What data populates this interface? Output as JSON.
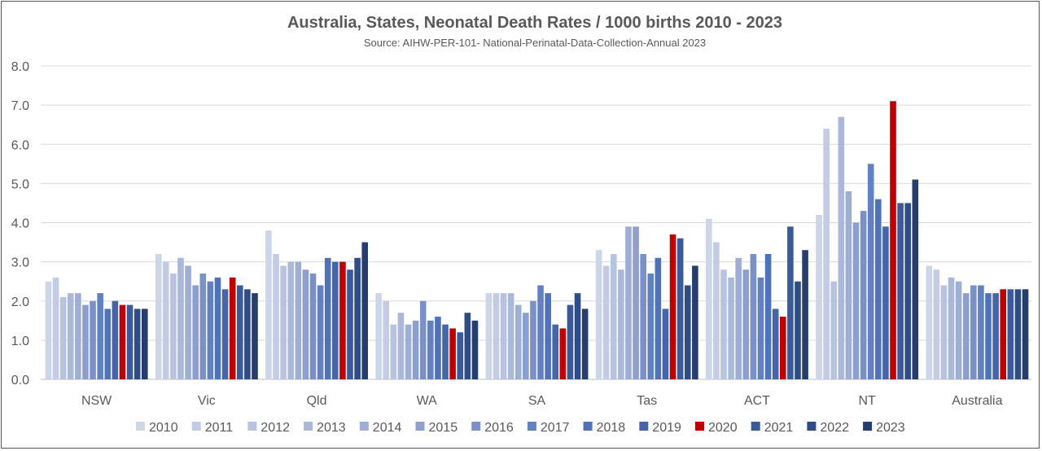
{
  "chart_data": {
    "type": "bar",
    "title": "Australia, States, Neonatal Death Rates / 1000 births 2010 - 2023",
    "subtitle": "Source: AIHW-PER-101- National-Perinatal-Data-Collection-Annual 2023",
    "xlabel": "",
    "ylabel": "",
    "ylim": [
      0,
      8
    ],
    "yticks": [
      "0.0",
      "1.0",
      "2.0",
      "3.0",
      "4.0",
      "5.0",
      "6.0",
      "7.0",
      "8.0"
    ],
    "grid": true,
    "legend_position": "bottom",
    "categories": [
      "NSW",
      "Vic",
      "Qld",
      "WA",
      "SA",
      "Tas",
      "ACT",
      "NT",
      "Australia"
    ],
    "series": [
      {
        "name": "2010",
        "color": "#cdd5e8",
        "values": [
          2.5,
          3.2,
          3.8,
          2.2,
          2.2,
          3.3,
          4.1,
          4.2,
          2.9
        ]
      },
      {
        "name": "2011",
        "color": "#c3cce4",
        "values": [
          2.6,
          3.0,
          3.2,
          2.0,
          2.2,
          2.9,
          3.5,
          6.4,
          2.8
        ]
      },
      {
        "name": "2012",
        "color": "#b7c3df",
        "values": [
          2.1,
          2.7,
          2.9,
          1.4,
          2.2,
          3.2,
          2.8,
          2.5,
          2.4
        ]
      },
      {
        "name": "2013",
        "color": "#aab8da",
        "values": [
          2.2,
          3.1,
          3.0,
          1.7,
          2.2,
          2.8,
          2.6,
          6.7,
          2.6
        ]
      },
      {
        "name": "2014",
        "color": "#9eaed5",
        "values": [
          2.2,
          2.9,
          3.0,
          1.4,
          1.9,
          3.9,
          3.1,
          4.8,
          2.5
        ]
      },
      {
        "name": "2015",
        "color": "#8d9fcf",
        "values": [
          1.9,
          2.4,
          2.8,
          1.5,
          1.7,
          3.9,
          2.8,
          4.0,
          2.2
        ]
      },
      {
        "name": "2016",
        "color": "#7a90c7",
        "values": [
          2.0,
          2.7,
          2.7,
          2.0,
          2.0,
          3.2,
          3.2,
          4.3,
          2.4
        ]
      },
      {
        "name": "2017",
        "color": "#6281c0",
        "values": [
          2.2,
          2.5,
          2.4,
          1.5,
          2.4,
          2.7,
          2.6,
          5.5,
          2.4
        ]
      },
      {
        "name": "2018",
        "color": "#4f73b8",
        "values": [
          1.8,
          2.6,
          3.1,
          1.6,
          2.2,
          3.1,
          3.2,
          4.6,
          2.2
        ]
      },
      {
        "name": "2019",
        "color": "#4466a8",
        "values": [
          2.0,
          2.3,
          3.0,
          1.4,
          1.4,
          1.8,
          1.8,
          3.9,
          2.2
        ]
      },
      {
        "name": "2020",
        "color": "#c00000",
        "values": [
          1.9,
          2.6,
          3.0,
          1.3,
          1.3,
          3.7,
          1.6,
          7.1,
          2.3
        ]
      },
      {
        "name": "2021",
        "color": "#3a5a99",
        "values": [
          1.9,
          2.4,
          2.8,
          1.2,
          1.9,
          3.6,
          3.9,
          4.5,
          2.3
        ]
      },
      {
        "name": "2022",
        "color": "#2e4d87",
        "values": [
          1.8,
          2.3,
          3.1,
          1.7,
          2.2,
          2.4,
          2.5,
          4.5,
          2.3
        ]
      },
      {
        "name": "2023",
        "color": "#253e6e",
        "values": [
          1.8,
          2.2,
          3.5,
          1.5,
          1.8,
          2.9,
          3.3,
          5.1,
          2.3
        ]
      }
    ]
  }
}
